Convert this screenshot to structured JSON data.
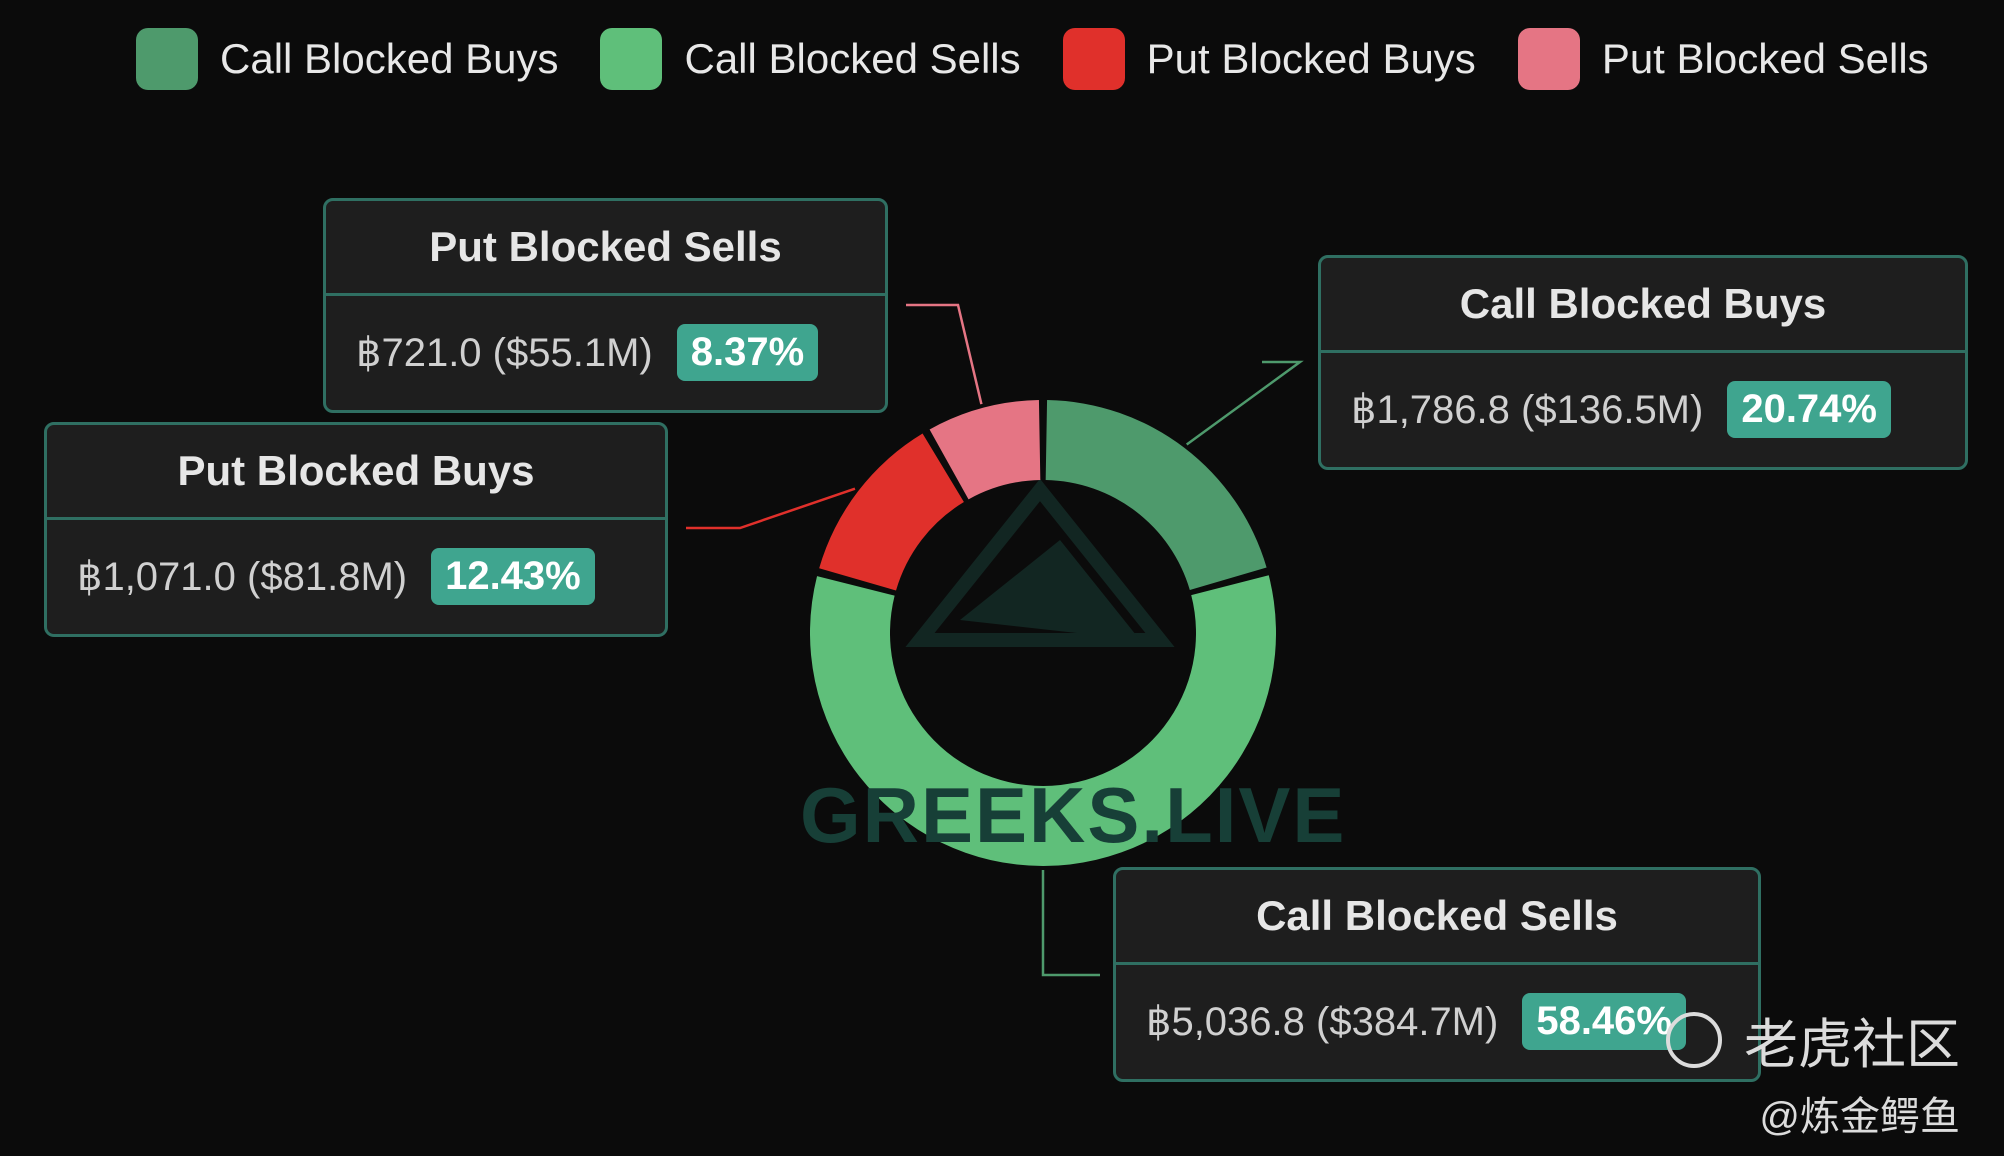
{
  "chart_data": {
    "type": "pie",
    "donut": true,
    "legend_position": "top",
    "series": [
      {
        "name": "Call Blocked Buys",
        "value": 1786.8,
        "value_label": "฿1,786.8 ($136.5M)",
        "percent_label": "20.74%",
        "color": "#4e9a6c"
      },
      {
        "name": "Call Blocked Sells",
        "value": 5036.8,
        "value_label": "฿5,036.8 ($384.7M)",
        "percent_label": "58.46%",
        "color": "#5fbf7a"
      },
      {
        "name": "Put Blocked Buys",
        "value": 1071.0,
        "value_label": "฿1,071.0 ($81.8M)",
        "percent_label": "12.43%",
        "color": "#e0302b"
      },
      {
        "name": "Put Blocked Sells",
        "value": 721.0,
        "value_label": "฿721.0 ($55.1M)",
        "percent_label": "8.37%",
        "color": "#e57584"
      }
    ]
  },
  "watermark": "GREEKS.LIVE",
  "site_watermark": "老虎社区",
  "author_watermark": "@炼金鳄鱼"
}
